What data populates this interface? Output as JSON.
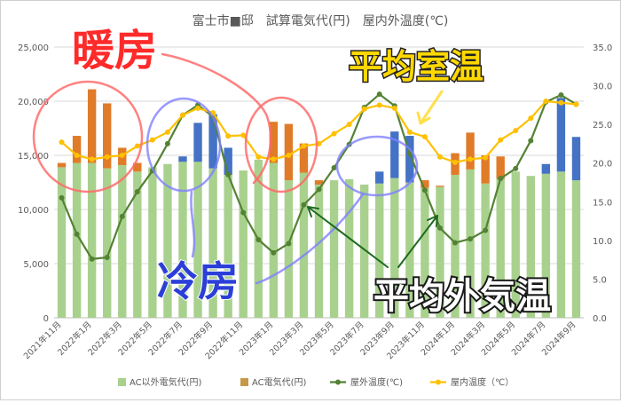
{
  "chart_data": {
    "type": "bar+line",
    "title": "富士市■邸　試算電気代(円)　屋内外温度(℃)",
    "categories": [
      "2021年11月",
      "2021年12月",
      "2022年1月",
      "2022年2月",
      "2022年3月",
      "2022年4月",
      "2022年5月",
      "2022年6月",
      "2022年7月",
      "2022年8月",
      "2022年9月",
      "2022年10月",
      "2022年11月",
      "2022年12月",
      "2023年1月",
      "2023年2月",
      "2023年3月",
      "2023年4月",
      "2023年5月",
      "2023年6月",
      "2023年7月",
      "2023年8月",
      "2023年9月",
      "2023年10月",
      "2023年11月",
      "2023年12月",
      "2024年1月",
      "2024年2月",
      "2024年3月",
      "2024年4月",
      "2024年5月",
      "2024年6月",
      "2024年7月",
      "2024年8月",
      "2024年9月"
    ],
    "x_tick_labels": [
      "2021年11月",
      "2022年1月",
      "2022年3月",
      "2022年5月",
      "2022年7月",
      "2022年9月",
      "2022年11月",
      "2023年1月",
      "2023年3月",
      "2023年5月",
      "2023年7月",
      "2023年9月",
      "2023年11月",
      "2024年1月",
      "2024年3月",
      "2024年5月",
      "2024年7月",
      "2024年9月"
    ],
    "y_left": {
      "min": 0,
      "max": 25000,
      "ticks": [
        "0",
        "5,000",
        "10,000",
        "15,000",
        "20,000",
        "25,000"
      ]
    },
    "y_right": {
      "min": 0,
      "max": 35,
      "ticks": [
        "0.0",
        "5.0",
        "10.0",
        "15.0",
        "20.0",
        "25.0",
        "30.0",
        "35.0"
      ]
    },
    "series": [
      {
        "name": "AC以外電気代(円)",
        "kind": "bar-stack-base",
        "axis": "left",
        "color": "#a9d18e",
        "values": [
          13900,
          14300,
          14300,
          13800,
          14100,
          13500,
          13900,
          14200,
          14400,
          14400,
          13800,
          13200,
          13600,
          14600,
          14300,
          12700,
          13400,
          12300,
          12700,
          12800,
          12300,
          12400,
          12900,
          12500,
          12000,
          12100,
          13200,
          13700,
          12400,
          12800,
          13500,
          13100,
          13300,
          13500,
          12700
        ]
      },
      {
        "name": "AC電気代(円)",
        "kind": "bar-stack-top",
        "axis": "left",
        "values": [
          400,
          2500,
          6800,
          6000,
          1600,
          800,
          0,
          0,
          500,
          3600,
          5000,
          2500,
          0,
          0,
          3800,
          5200,
          2700,
          400,
          0,
          0,
          0,
          1100,
          4300,
          4300,
          700,
          100,
          2000,
          3400,
          2600,
          2100,
          0,
          0,
          900,
          6800,
          4000
        ],
        "colors": [
          "#e07b29",
          "#e07b29",
          "#e07b29",
          "#e07b29",
          "#e07b29",
          "#e07b29",
          "#e07b29",
          "#e07b29",
          "#4472c4",
          "#4472c4",
          "#4472c4",
          "#4472c4",
          "#e07b29",
          "#e07b29",
          "#e07b29",
          "#e07b29",
          "#e07b29",
          "#e07b29",
          "#4472c4",
          "#4472c4",
          "#4472c4",
          "#4472c4",
          "#4472c4",
          "#4472c4",
          "#e07b29",
          "#e07b29",
          "#e07b29",
          "#e07b29",
          "#e07b29",
          "#e07b29",
          "#4472c4",
          "#4472c4",
          "#4472c4",
          "#4472c4",
          "#4472c4"
        ]
      },
      {
        "name": "屋外温度(℃)",
        "kind": "line",
        "axis": "right",
        "color": "#548235",
        "values": [
          15.5,
          10.8,
          7.6,
          7.8,
          13.1,
          16.3,
          19.0,
          22.5,
          26.2,
          27.5,
          26.0,
          18.5,
          13.6,
          10.1,
          8.4,
          9.6,
          14.6,
          16.6,
          19.4,
          22.4,
          27.2,
          28.9,
          27.4,
          21.2,
          16.5,
          11.6,
          9.7,
          10.2,
          11.3,
          18.0,
          19.3,
          22.9,
          27.9,
          28.8,
          27.6
        ]
      },
      {
        "name": "屋内温度（℃）",
        "kind": "line",
        "axis": "right",
        "color": "#ffc000",
        "values": [
          22.7,
          21.0,
          20.5,
          20.8,
          21.0,
          22.2,
          23.0,
          24.0,
          26.2,
          27.1,
          26.5,
          23.5,
          23.6,
          20.8,
          20.5,
          21.0,
          22.2,
          22.5,
          23.8,
          25.0,
          27.0,
          27.5,
          27.1,
          24.0,
          23.4,
          20.8,
          20.1,
          20.5,
          20.7,
          23.0,
          24.2,
          25.8,
          28.0,
          27.8,
          27.6
        ]
      }
    ],
    "legend": {
      "placement": "bottom",
      "items": [
        "AC以外電気代(円)",
        "AC電気代(円)",
        "屋外温度(℃)",
        "屋内温度（℃）"
      ],
      "colors": [
        "#a9d18e",
        "#c49a4a",
        "#548235",
        "#ffc000"
      ]
    },
    "annotations": [
      {
        "text": "暖房",
        "color": "#ff2a2a"
      },
      {
        "text": "平均室温",
        "color": "#ffd800"
      },
      {
        "text": "冷房",
        "color": "#2b3fd8"
      },
      {
        "text": "平均外気温",
        "color": "#ffffff"
      }
    ],
    "grid": true
  }
}
